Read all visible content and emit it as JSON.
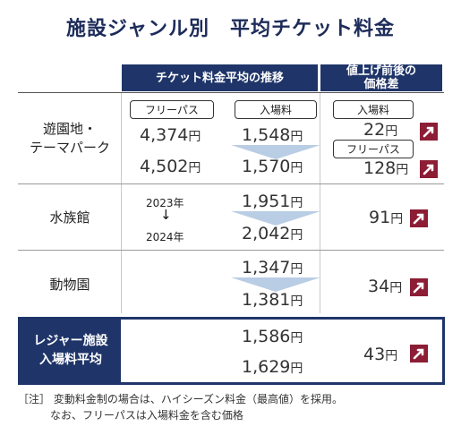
{
  "title": "施設ジャンル別　平均チケット料金",
  "headers": {
    "trend": "チケット料金平均の推移",
    "diff_line1": "値上げ前後の",
    "diff_line2": "価格差"
  },
  "years": {
    "from": "2023年",
    "to": "2024年",
    "arrow": "↓"
  },
  "units": {
    "yen": "円"
  },
  "rows": [
    {
      "category_line1": "遊園地・",
      "category_line2": "テーマパーク",
      "pass_label": "フリーパス",
      "pass_2023": "4,374",
      "pass_2024": "4,502",
      "entry_label": "入場料",
      "entry_2023": "1,548",
      "entry_2024": "1,570",
      "diff_entry_label": "入場料",
      "diff_entry": "22",
      "diff_pass_label": "フリーパス",
      "diff_pass": "128"
    },
    {
      "category": "水族館",
      "price_2023": "1,951",
      "price_2024": "2,042",
      "diff": "91"
    },
    {
      "category": "動物園",
      "price_2023": "1,347",
      "price_2024": "1,381",
      "diff": "34"
    },
    {
      "category_line1": "レジャー施設",
      "category_line2": "入場料平均",
      "price_2023": "1,586",
      "price_2024": "1,629",
      "diff": "43"
    }
  ],
  "note": {
    "line1": "［注］ 変動料金制の場合は、ハイシーズン料金（最高値）を採用。",
    "line2": "なお、フリーパスは入場料金を含む価格"
  },
  "colors": {
    "navy": "#1f3569",
    "arrow_badge": "#8c1d35",
    "trend_arrow": "#b9cde4"
  },
  "chart_data": {
    "type": "table",
    "title": "施設ジャンル別　平均チケット料金",
    "columns": [
      "2023年",
      "2024年",
      "値上げ前後の価格差"
    ],
    "unit": "円",
    "series": [
      {
        "name": "遊園地・テーマパーク フリーパス",
        "values": [
          4374,
          4502,
          128
        ]
      },
      {
        "name": "遊園地・テーマパーク 入場料",
        "values": [
          1548,
          1570,
          22
        ]
      },
      {
        "name": "水族館",
        "values": [
          1951,
          2042,
          91
        ]
      },
      {
        "name": "動物園",
        "values": [
          1347,
          1381,
          34
        ]
      },
      {
        "name": "レジャー施設 入場料平均",
        "values": [
          1586,
          1629,
          43
        ]
      }
    ]
  }
}
